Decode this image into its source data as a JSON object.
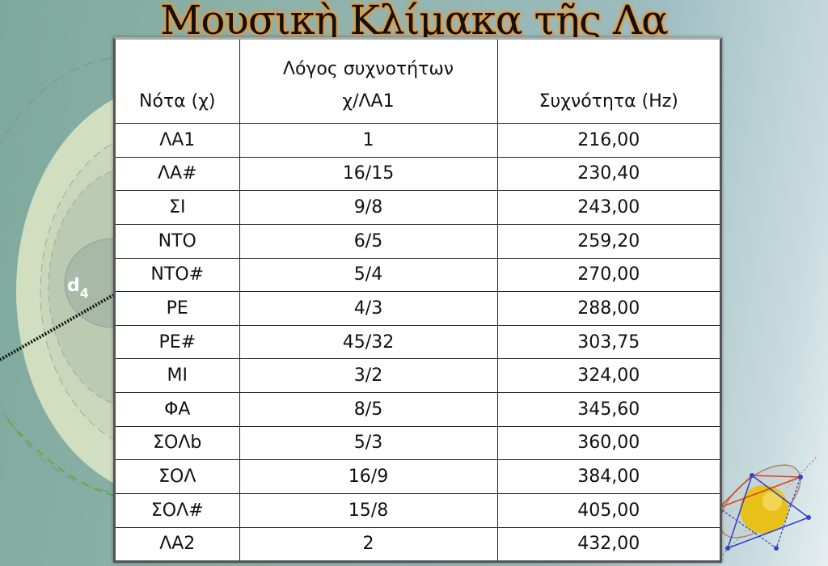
{
  "title": "Μουσικὴ Κλίμακα τῆς Λα",
  "decoration": {
    "label": "d4",
    "colors": {
      "sphere": "#e8c21a",
      "red": "#d9401f",
      "blue": "#2a3fd0",
      "background": "#8fb3ab"
    }
  },
  "table": {
    "headers": {
      "note": "Νότα (χ)",
      "ratio_line1": "Λόγος συχνοτήτων",
      "ratio_line2": "χ/ΛΑ1",
      "frequency": "Συχνότητα (Hz)"
    },
    "rows": [
      {
        "note": "ΛΑ1",
        "ratio": "1",
        "frequency": "216,00"
      },
      {
        "note": "ΛΑ#",
        "ratio": "16/15",
        "frequency": "230,40"
      },
      {
        "note": "ΣΙ",
        "ratio": "9/8",
        "frequency": "243,00"
      },
      {
        "note": "ΝΤΟ",
        "ratio": "6/5",
        "frequency": "259,20"
      },
      {
        "note": "ΝΤΟ#",
        "ratio": "5/4",
        "frequency": "270,00"
      },
      {
        "note": "ΡΕ",
        "ratio": "4/3",
        "frequency": "288,00"
      },
      {
        "note": "ΡΕ#",
        "ratio": "45/32",
        "frequency": "303,75"
      },
      {
        "note": "ΜΙ",
        "ratio": "3/2",
        "frequency": "324,00"
      },
      {
        "note": "ΦΑ",
        "ratio": "8/5",
        "frequency": "345,60"
      },
      {
        "note": "ΣΟΛb",
        "ratio": "5/3",
        "frequency": "360,00"
      },
      {
        "note": "ΣΟΛ",
        "ratio": "16/9",
        "frequency": "384,00"
      },
      {
        "note": "ΣΟΛ#",
        "ratio": "15/8",
        "frequency": "405,00"
      },
      {
        "note": "ΛΑ2",
        "ratio": "2",
        "frequency": "432,00"
      }
    ]
  }
}
